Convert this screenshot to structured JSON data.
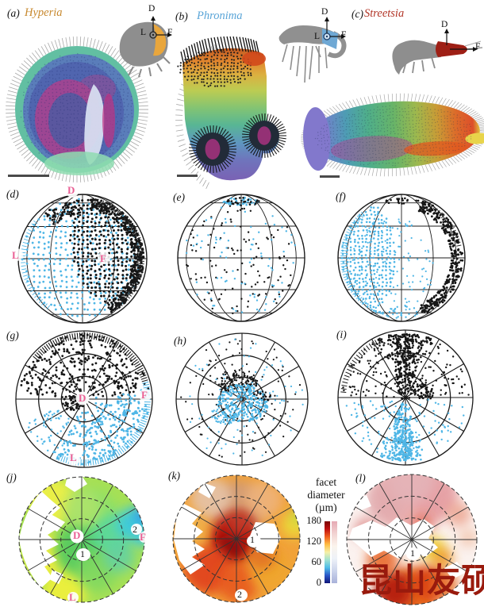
{
  "panels": {
    "a": {
      "label": "(a)",
      "title": "Hyperia"
    },
    "b": {
      "label": "(b)",
      "title": "Phronima"
    },
    "c": {
      "label": "(c)",
      "title": "Streetsia"
    },
    "d": {
      "label": "(d)",
      "dorsal": "D",
      "lateral": "L",
      "frontal": "F"
    },
    "e": {
      "label": "(e)"
    },
    "f": {
      "label": "(f)"
    },
    "g": {
      "label": "(g)",
      "dorsal": "D",
      "frontal": "F",
      "lateral": "L"
    },
    "h": {
      "label": "(h)"
    },
    "i": {
      "label": "(i)"
    },
    "j": {
      "label": "(j)",
      "dorsal": "D",
      "frontal": "F",
      "lateral": "L",
      "marker1": "1",
      "marker2": "2"
    },
    "k": {
      "label": "(k)",
      "marker1": "1",
      "marker2": "2"
    },
    "l": {
      "label": "(l)",
      "marker1": "1"
    }
  },
  "insets": {
    "a": {
      "dorsal": "D",
      "lateral": "L",
      "frontal": "F"
    },
    "b": {
      "dorsal": "D",
      "lateral": "L",
      "frontal": "F"
    },
    "c": {
      "dorsal": "D",
      "frontal": "F"
    }
  },
  "colorbar": {
    "title_line1": "facet",
    "title_line2": "diameter",
    "title_line3": "(µm)",
    "tick_180": "180",
    "tick_120": "120",
    "tick_60": "60",
    "tick_0": "0"
  },
  "watermark": {
    "text": "昆山友硕"
  },
  "colors": {
    "hyperia_title": "#c8892f",
    "phronima_title": "#5aa5d8",
    "streetsia_title": "#b23527",
    "axis_pink": "#ea5f94",
    "dot_blue": "#4fb6e6",
    "dot_black": "#161616",
    "watermark_red": "#991a0d"
  },
  "chart_data": [
    {
      "panel": "a",
      "type": "3d-model",
      "species": "Hyperia",
      "content": "compound eye corneal surface reconstruction with scale bar",
      "axes": [
        "D",
        "L",
        "F"
      ]
    },
    {
      "panel": "b",
      "type": "3d-model",
      "species": "Phronima",
      "content": "compound eye corneal surface reconstruction with scale bar",
      "axes": [
        "D",
        "L",
        "F"
      ]
    },
    {
      "panel": "c",
      "type": "3d-model",
      "species": "Streetsia",
      "content": "compound eye corneal surface reconstruction with scale bar",
      "axes": [
        "D",
        "F"
      ]
    },
    {
      "panel": "d",
      "type": "scatter",
      "projection": "globe",
      "species": "Hyperia",
      "axis_letters": [
        "D",
        "L",
        "F"
      ],
      "series": [
        {
          "name": "blue ommatidial points",
          "color": "#4fb6e6"
        },
        {
          "name": "black ommatidial points",
          "color": "#161616"
        }
      ]
    },
    {
      "panel": "e",
      "type": "scatter",
      "projection": "globe",
      "species": "Phronima",
      "series": [
        {
          "name": "blue ommatidial points",
          "color": "#4fb6e6"
        },
        {
          "name": "black ommatidial points",
          "color": "#161616"
        }
      ]
    },
    {
      "panel": "f",
      "type": "scatter",
      "projection": "globe",
      "species": "Streetsia",
      "series": [
        {
          "name": "blue ommatidial points",
          "color": "#4fb6e6"
        },
        {
          "name": "black ommatidial points",
          "color": "#161616"
        }
      ]
    },
    {
      "panel": "g",
      "type": "scatter",
      "projection": "polar",
      "species": "Hyperia",
      "axis_letters": [
        "D",
        "F",
        "L"
      ],
      "series": [
        {
          "name": "blue ommatidial points",
          "color": "#4fb6e6"
        },
        {
          "name": "black ommatidial points",
          "color": "#161616"
        }
      ]
    },
    {
      "panel": "h",
      "type": "scatter",
      "projection": "polar",
      "species": "Phronima",
      "series": [
        {
          "name": "blue ommatidial points",
          "color": "#4fb6e6"
        },
        {
          "name": "black ommatidial points",
          "color": "#161616"
        }
      ]
    },
    {
      "panel": "i",
      "type": "scatter",
      "projection": "polar",
      "species": "Streetsia",
      "series": [
        {
          "name": "blue ommatidial points",
          "color": "#4fb6e6"
        },
        {
          "name": "black ommatidial points",
          "color": "#161616"
        }
      ]
    },
    {
      "panel": "j",
      "type": "heatmap",
      "projection": "polar",
      "species": "Hyperia",
      "variable": "facet diameter (µm)",
      "range": [
        0,
        180
      ],
      "annotations": [
        "D",
        "F",
        "L",
        "1",
        "2"
      ]
    },
    {
      "panel": "k",
      "type": "heatmap",
      "projection": "polar",
      "species": "Phronima",
      "variable": "facet diameter (µm)",
      "range": [
        0,
        180
      ],
      "annotations": [
        "1",
        "2"
      ]
    },
    {
      "panel": "l",
      "type": "heatmap",
      "projection": "polar",
      "species": "Streetsia",
      "variable": "facet diameter (µm)",
      "range": [
        0,
        180
      ],
      "annotations": [
        "1"
      ]
    },
    {
      "type": "colorbar",
      "title": "facet diameter (µm)",
      "ticks": [
        180,
        120,
        60,
        0
      ],
      "orientation": "vertical",
      "style": "two bars: saturated and pale"
    }
  ]
}
